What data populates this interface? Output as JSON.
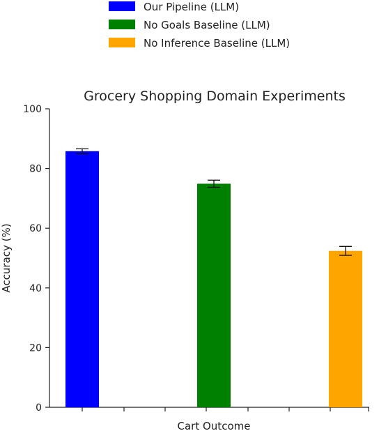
{
  "chart_data": {
    "type": "bar",
    "title": "Grocery Shopping Domain Experiments",
    "xlabel": "Cart Outcome",
    "ylabel": "Accuracy (%)",
    "ylim": [
      0,
      100
    ],
    "yticks": [
      0,
      20,
      40,
      60,
      80,
      100
    ],
    "grid": false,
    "legend_position": "top",
    "series": [
      {
        "name": "Our Pipeline (LLM)",
        "color": "#0000ff",
        "value": 85.8,
        "error": 0.8
      },
      {
        "name": "No Goals Baseline (LLM)",
        "color": "#008000",
        "value": 74.9,
        "error": 1.2
      },
      {
        "name": "No Inference Baseline (LLM)",
        "color": "#ffa500",
        "value": 52.4,
        "error": 1.5
      }
    ]
  }
}
